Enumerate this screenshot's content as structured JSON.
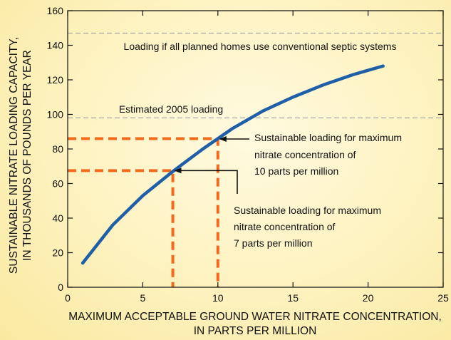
{
  "chart_data": {
    "type": "line",
    "title": "",
    "xlabel": "MAXIMUM ACCEPTABLE GROUND WATER NITRATE CONCENTRATION,",
    "xlabel_line2": "IN PARTS PER MILLION",
    "ylabel": "SUSTAINABLE NITRATE LOADING CAPACITY,",
    "ylabel_line2": "IN THOUSANDS OF POUNDS PER YEAR",
    "xlim": [
      0,
      25
    ],
    "ylim": [
      0,
      160
    ],
    "x_ticks": [
      0,
      5,
      10,
      15,
      20,
      25
    ],
    "y_ticks": [
      0,
      20,
      40,
      60,
      80,
      100,
      120,
      140,
      160
    ],
    "grid": false,
    "series": [
      {
        "color": "#1f5fa8",
        "x": [
          1,
          3,
          5,
          7,
          9,
          11,
          13,
          15,
          17,
          19,
          21
        ],
        "y": [
          14,
          36,
          53,
          67,
          80,
          92,
          102,
          110,
          117,
          123,
          128
        ]
      }
    ],
    "reference_lines": [
      {
        "y": 147,
        "color": "#a8a8a8",
        "label": "Loading if all planned homes use conventional septic systems"
      },
      {
        "y": 98,
        "color": "#a8a8a8",
        "label": "Estimated 2005 loading"
      }
    ],
    "callouts": [
      {
        "x": 10,
        "y": 86,
        "color": "#f26b1d",
        "lines": [
          "Sustainable loading for maximum",
          "nitrate concentration of",
          "10 parts per million"
        ]
      },
      {
        "x": 7,
        "y": 67.5,
        "color": "#f26b1d",
        "lines": [
          "Sustainable loading for maximum",
          "nitrate concentration of",
          "7 parts per million"
        ]
      }
    ]
  }
}
